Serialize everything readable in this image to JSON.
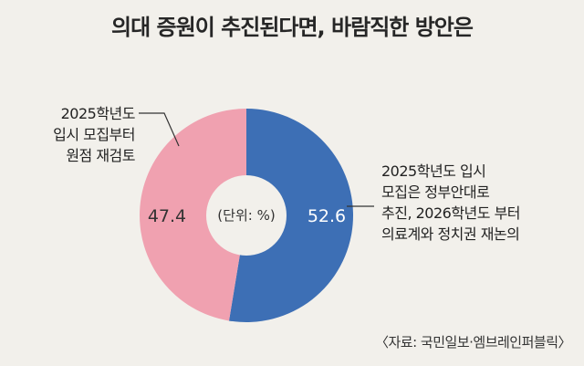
{
  "title": "의대 증원이 추진된다면, 바람직한 방안은",
  "chart_data": {
    "type": "pie",
    "donut": true,
    "center_label": "(단위: %)",
    "slices": [
      {
        "value": 52.6,
        "label": "52.6",
        "annotation": [
          "2025학년도 입시",
          "모집은 정부안대로",
          "추진, 2026학년도 부터",
          "의료계와 정치권 재논의"
        ],
        "color": "#3d6fb5"
      },
      {
        "value": 47.4,
        "label": "47.4",
        "annotation": [
          "2025학년도",
          "입시 모집부터",
          "원점 재검토"
        ],
        "color": "#f0a1b0"
      }
    ]
  },
  "source": "〈자료: 국민일보·엠브레인퍼블릭〉"
}
